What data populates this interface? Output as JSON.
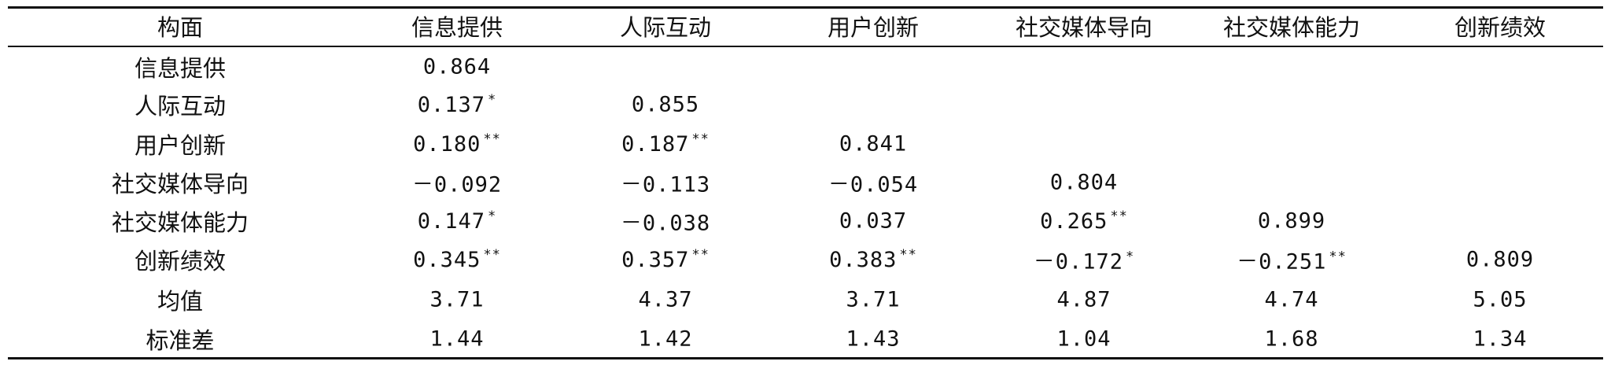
{
  "table": {
    "header": [
      "构面",
      "信息提供",
      "人际互动",
      "用户创新",
      "社交媒体导向",
      "社交媒体能力",
      "创新绩效"
    ],
    "rows": [
      {
        "label": "信息提供",
        "cells": [
          "0.864"
        ]
      },
      {
        "label": "人际互动",
        "cells": [
          {
            "text": "0.137",
            "sig": "*"
          },
          "0.855"
        ]
      },
      {
        "label": "用户创新",
        "cells": [
          {
            "text": "0.180",
            "sig": "**"
          },
          {
            "text": "0.187",
            "sig": "**"
          },
          "0.841"
        ]
      },
      {
        "label": "社交媒体导向",
        "cells": [
          "－0.092",
          "－0.113",
          "－0.054",
          "0.804"
        ]
      },
      {
        "label": "社交媒体能力",
        "cells": [
          {
            "text": "0.147",
            "sig": "*"
          },
          "－0.038",
          "0.037",
          {
            "text": "0.265",
            "sig": "**"
          },
          "0.899"
        ]
      },
      {
        "label": "创新绩效",
        "cells": [
          {
            "text": "0.345",
            "sig": "**"
          },
          {
            "text": "0.357",
            "sig": "**"
          },
          {
            "text": "0.383",
            "sig": "**"
          },
          {
            "text": "－0.172",
            "sig": "*"
          },
          {
            "text": "－0.251",
            "sig": "**"
          },
          "0.809"
        ]
      },
      {
        "label": "均值",
        "cells": [
          "3.71",
          "4.37",
          "3.71",
          "4.87",
          "4.74",
          "5.05"
        ]
      },
      {
        "label": "标准差",
        "cells": [
          "1.44",
          "1.42",
          "1.43",
          "1.04",
          "1.68",
          "1.34"
        ]
      }
    ]
  }
}
